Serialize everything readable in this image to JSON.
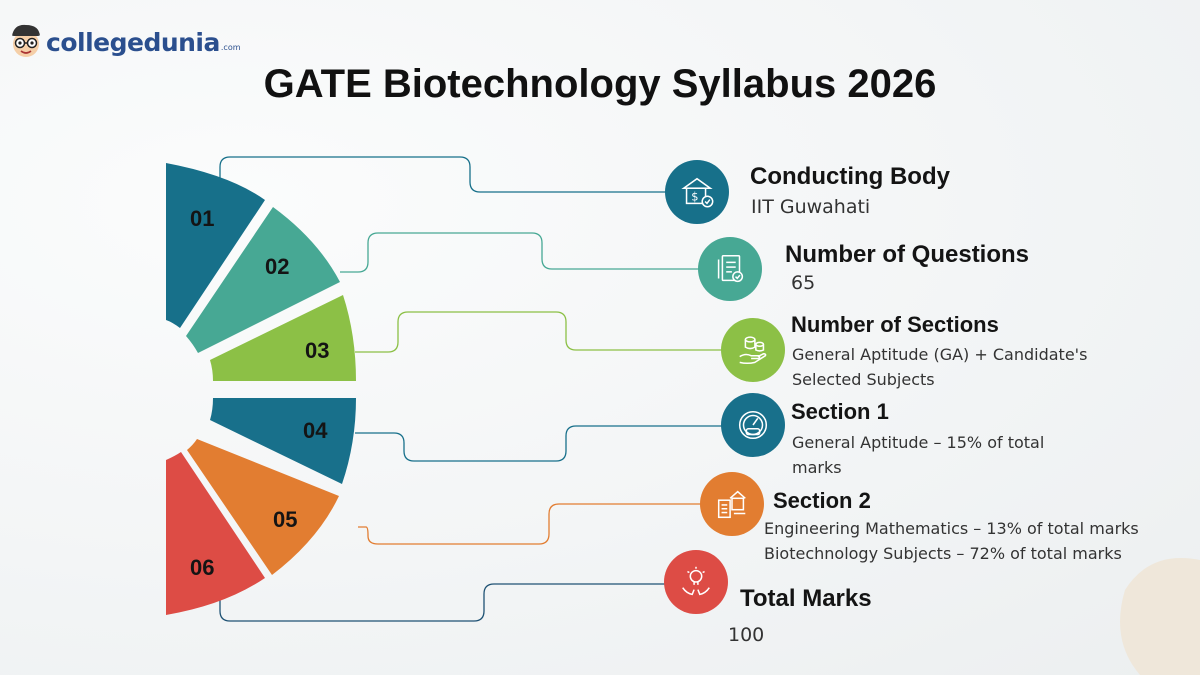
{
  "brand": {
    "name": "collegedunia",
    "suffix": ".com"
  },
  "title": "GATE Biotechnology Syllabus 2026",
  "colors": {
    "teal_dark": "#17708a",
    "teal_green": "#47a894",
    "lime": "#8cc046",
    "blue": "#18708b",
    "orange": "#e27d31",
    "red": "#dd4c45"
  },
  "segments": [
    {
      "num": "01",
      "color": "#17708a"
    },
    {
      "num": "02",
      "color": "#47a894"
    },
    {
      "num": "03",
      "color": "#8cc046"
    },
    {
      "num": "04",
      "color": "#18708b"
    },
    {
      "num": "05",
      "color": "#e27d31"
    },
    {
      "num": "06",
      "color": "#dd4c45"
    }
  ],
  "items": [
    {
      "title": "Conducting Body",
      "desc": "IIT Guwahati",
      "icon": "bank-icon"
    },
    {
      "title": "Number of Questions",
      "desc": "65",
      "icon": "document-check-icon"
    },
    {
      "title": "Number of Sections",
      "desc": "General Aptitude (GA) + Candidate's Selected Subjects",
      "icon": "coins-hand-icon"
    },
    {
      "title": "Section 1",
      "desc": "General Aptitude – 15% of total marks",
      "icon": "gauge-icon"
    },
    {
      "title": "Section 2",
      "desc_lines": [
        "Engineering Mathematics – 13% of total marks",
        "Biotechnology Subjects – 72% of total marks"
      ],
      "icon": "building-list-icon"
    },
    {
      "title": "Total Marks",
      "desc": "100",
      "icon": "lightbulb-hands-icon"
    }
  ]
}
